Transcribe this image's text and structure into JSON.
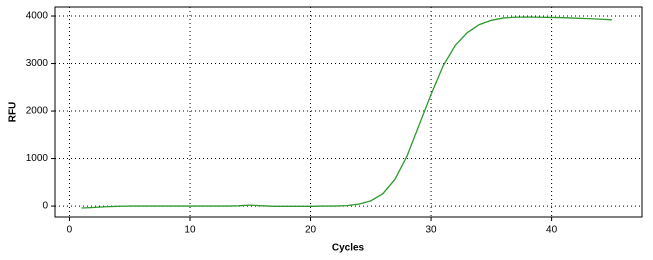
{
  "chart_data": {
    "type": "line",
    "x_label": "Cycles",
    "y_label": "RFU",
    "x": [
      1,
      2,
      3,
      4,
      5,
      6,
      7,
      8,
      9,
      10,
      11,
      12,
      13,
      14,
      15,
      16,
      17,
      18,
      19,
      20,
      21,
      22,
      23,
      24,
      25,
      26,
      27,
      28,
      29,
      30,
      31,
      32,
      33,
      34,
      35,
      36,
      37,
      38,
      39,
      40,
      41,
      42,
      43,
      44,
      45
    ],
    "series": [
      {
        "color": "#2e9a2e",
        "values": [
          -40,
          -30,
          -15,
          -5,
          0,
          0,
          0,
          0,
          0,
          0,
          0,
          0,
          0,
          5,
          20,
          5,
          -5,
          -5,
          -5,
          -5,
          0,
          0,
          10,
          40,
          110,
          260,
          560,
          1050,
          1700,
          2350,
          2950,
          3380,
          3650,
          3820,
          3910,
          3960,
          3975,
          3980,
          3975,
          3970,
          3965,
          3955,
          3945,
          3935,
          3920
        ]
      }
    ],
    "xlim": [
      -1.2,
      47.5
    ],
    "ylim": [
      -230,
      4190
    ],
    "xticks": [
      0,
      10,
      20,
      30,
      40
    ],
    "yticks": [
      0,
      1000,
      2000,
      3000,
      4000
    ],
    "grid": true
  }
}
